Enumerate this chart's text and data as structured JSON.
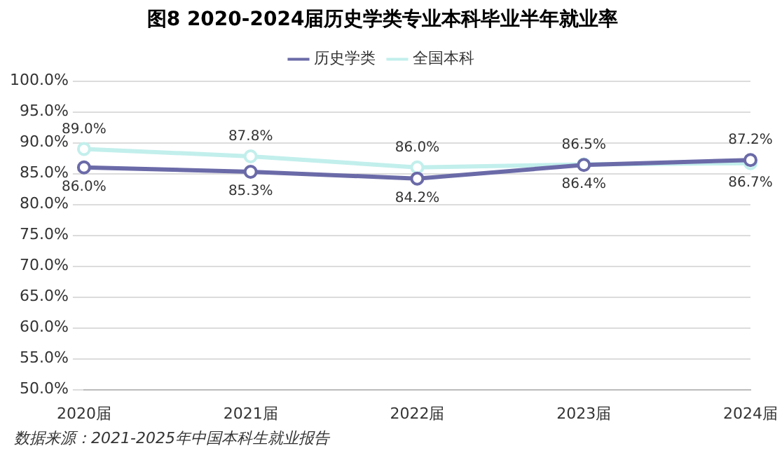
{
  "chart_data": {
    "type": "line",
    "title": "图8 2020-2024届历史学类专业本科毕业半年就业率",
    "categories": [
      "2020届",
      "2021届",
      "2022届",
      "2023届",
      "2024届"
    ],
    "series": [
      {
        "name": "历史学类",
        "color": "#6b6aa8",
        "values": [
          86.0,
          85.3,
          84.2,
          86.4,
          87.2
        ],
        "value_labels": [
          "86.0%",
          "85.3%",
          "84.2%",
          "86.4%",
          "87.2%"
        ]
      },
      {
        "name": "全国本科",
        "color": "#c2efec",
        "values": [
          89.0,
          87.8,
          86.0,
          86.5,
          86.7
        ],
        "value_labels": [
          "89.0%",
          "87.8%",
          "86.0%",
          "86.5%",
          "86.7%"
        ]
      }
    ],
    "ylim": [
      50,
      100
    ],
    "yticks": [
      {
        "value": 50,
        "label": "50.0%"
      },
      {
        "value": 55,
        "label": "55.0%"
      },
      {
        "value": 60,
        "label": "60.0%"
      },
      {
        "value": 65,
        "label": "65.0%"
      },
      {
        "value": 70,
        "label": "70.0%"
      },
      {
        "value": 75,
        "label": "75.0%"
      },
      {
        "value": 80,
        "label": "80.0%"
      },
      {
        "value": 85,
        "label": "85.0%"
      },
      {
        "value": 90,
        "label": "90.0%"
      },
      {
        "value": 95,
        "label": "95.0%"
      },
      {
        "value": 100,
        "label": "100.0%"
      }
    ],
    "grid": "y",
    "legend": "top",
    "marker": "circle",
    "annotations": [
      "数据来源：2021-2025年中国本科生就业报告"
    ]
  }
}
